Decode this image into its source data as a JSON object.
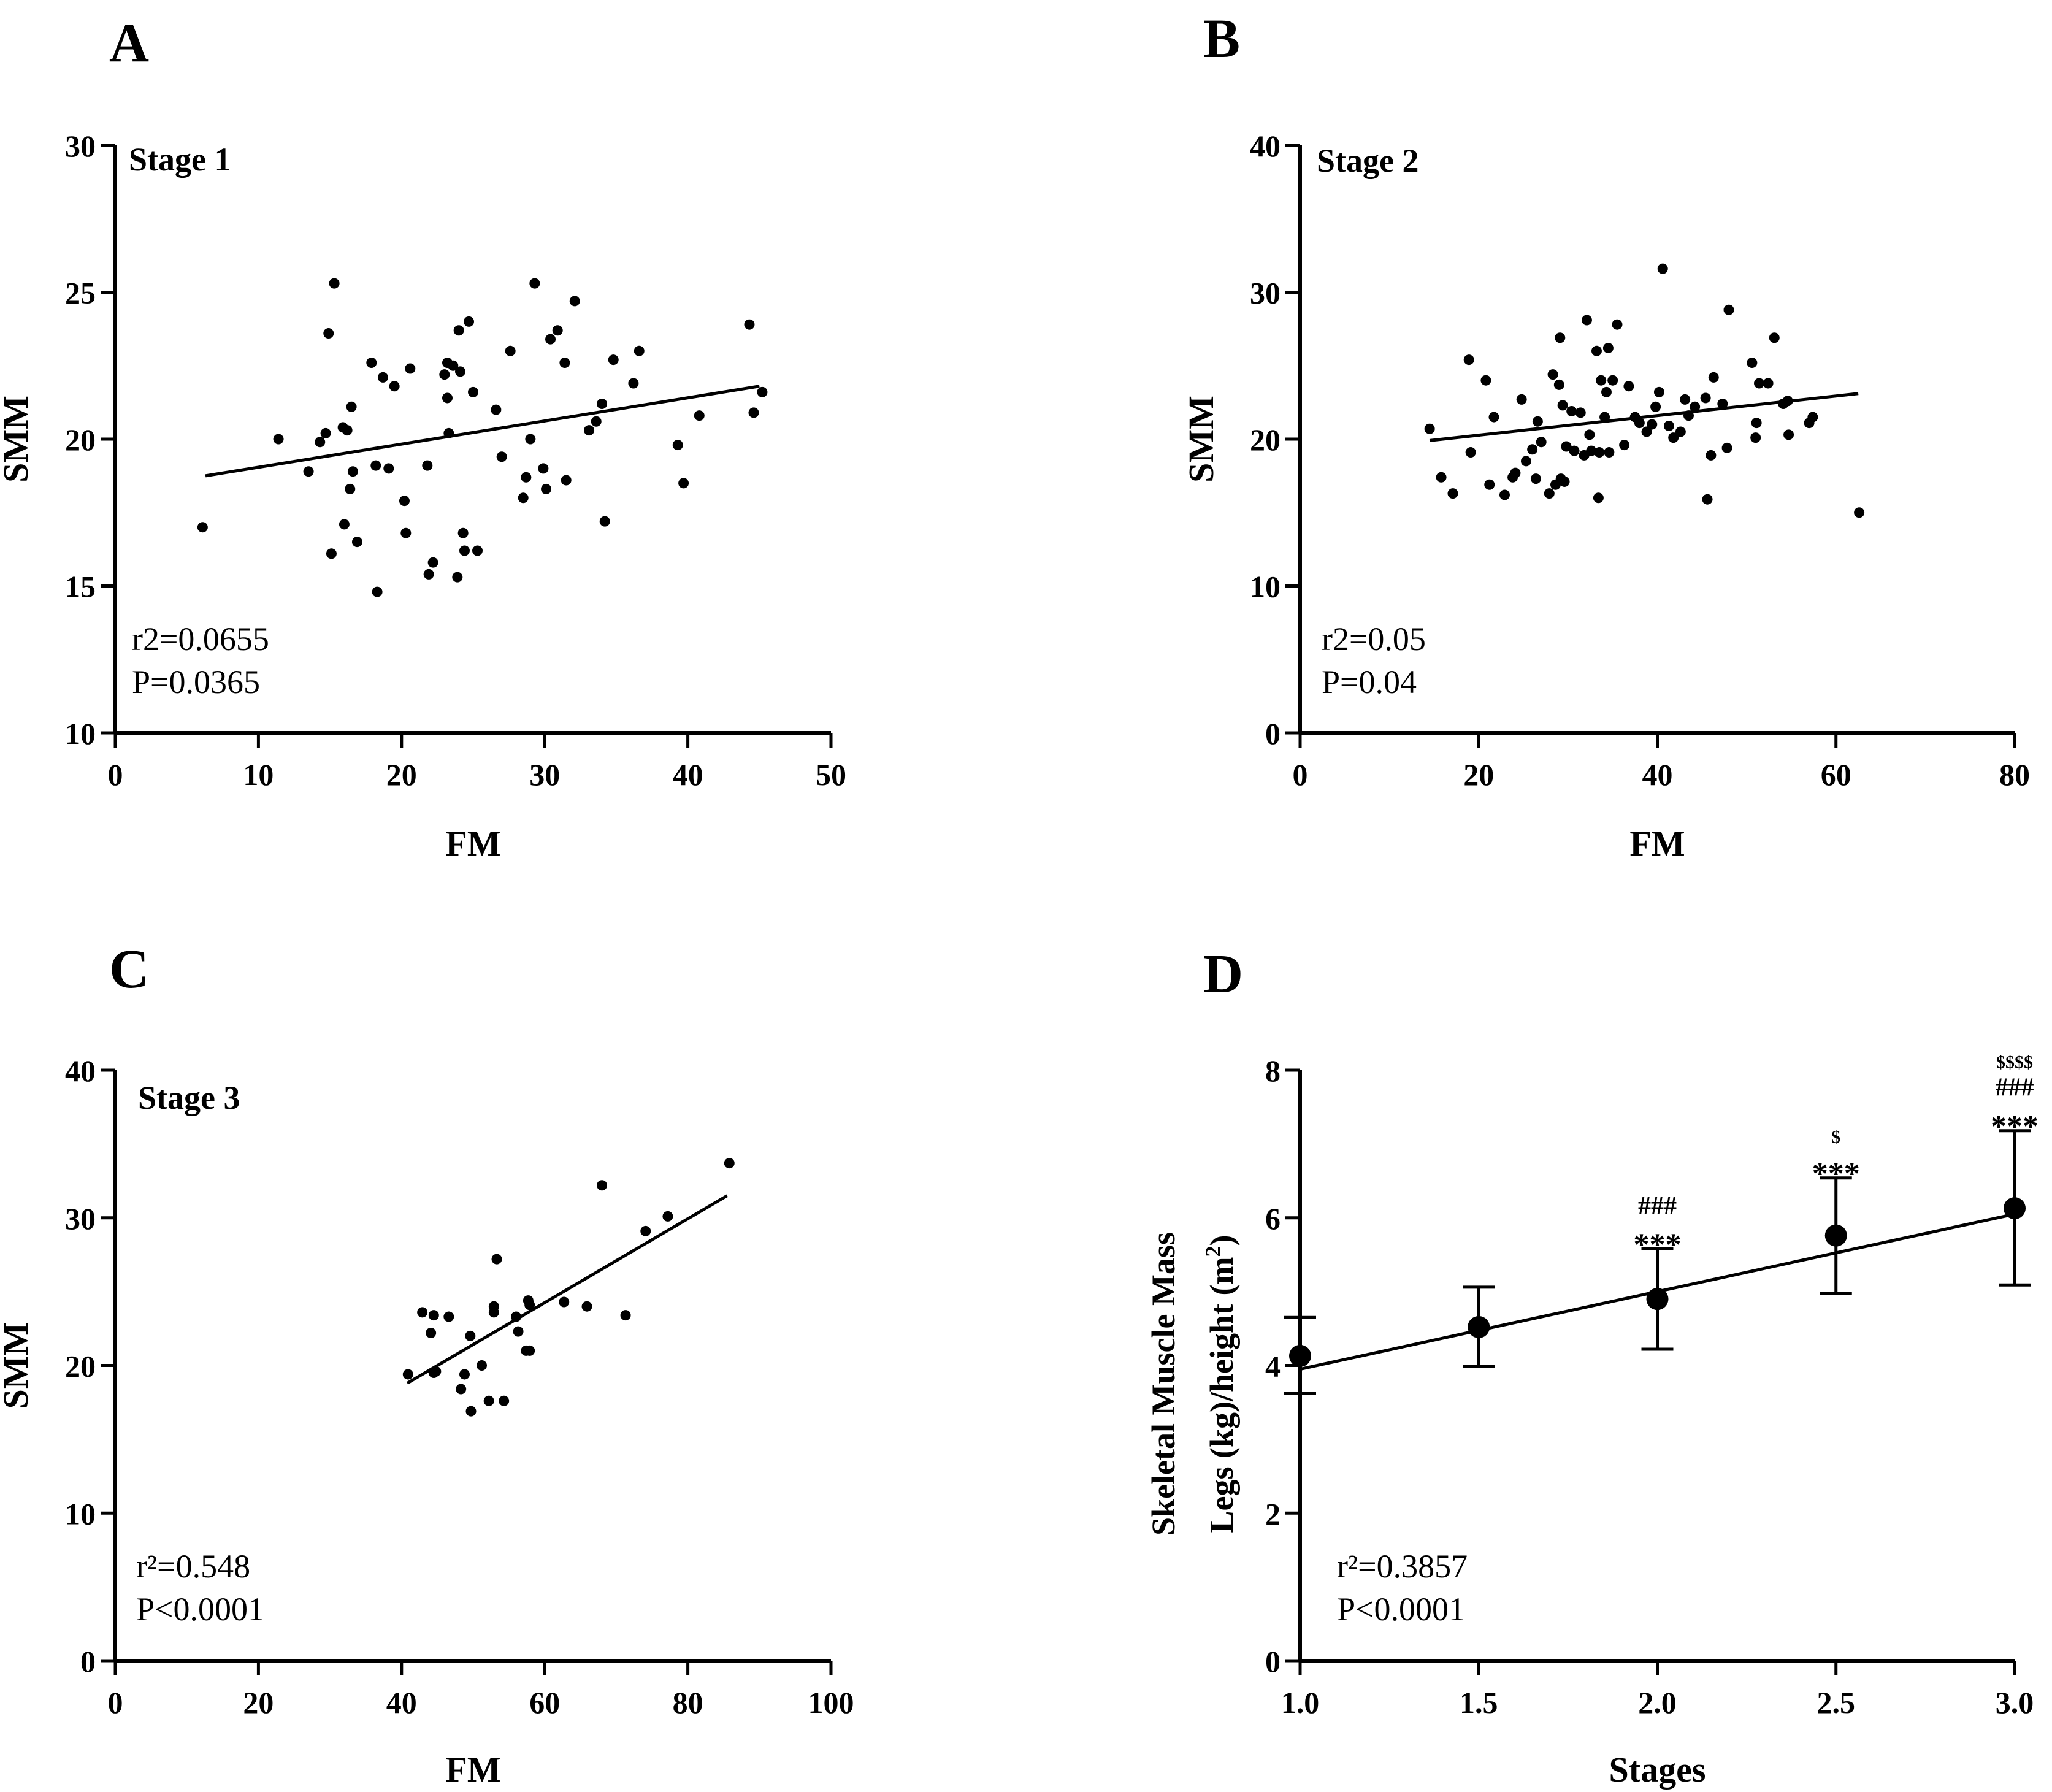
{
  "chart_data": [
    {
      "panel_letter": "A",
      "type": "scatter",
      "title": "Stage 1",
      "xlabel": "FM",
      "ylabel": "SMM",
      "xlim": [
        0,
        50
      ],
      "ylim": [
        10,
        30
      ],
      "xticks": [
        0,
        10,
        20,
        30,
        40,
        50
      ],
      "yticks": [
        10,
        15,
        20,
        25,
        30
      ],
      "stats": [
        "r2=0.0655",
        "P=0.0365"
      ],
      "regression": {
        "x": [
          6.3,
          45.0
        ],
        "y": [
          18.75,
          21.8
        ]
      },
      "points": [
        [
          6.1,
          17.0
        ],
        [
          11.4,
          20.0
        ],
        [
          13.5,
          18.9
        ],
        [
          14.3,
          19.9
        ],
        [
          14.7,
          20.2
        ],
        [
          14.9,
          23.6
        ],
        [
          15.1,
          16.1
        ],
        [
          15.3,
          25.3
        ],
        [
          15.9,
          20.4
        ],
        [
          16.0,
          17.1
        ],
        [
          16.2,
          20.3
        ],
        [
          16.4,
          18.3
        ],
        [
          16.5,
          21.1
        ],
        [
          16.6,
          18.9
        ],
        [
          16.9,
          16.5
        ],
        [
          17.9,
          22.6
        ],
        [
          18.2,
          19.1
        ],
        [
          18.3,
          14.8
        ],
        [
          18.7,
          22.1
        ],
        [
          19.1,
          19.0
        ],
        [
          19.5,
          21.8
        ],
        [
          20.2,
          17.9
        ],
        [
          20.3,
          16.8
        ],
        [
          20.6,
          22.4
        ],
        [
          21.8,
          19.1
        ],
        [
          21.9,
          15.4
        ],
        [
          22.2,
          15.8
        ],
        [
          23.0,
          22.2
        ],
        [
          23.2,
          21.4
        ],
        [
          23.2,
          22.6
        ],
        [
          23.3,
          20.2
        ],
        [
          23.6,
          22.5
        ],
        [
          23.9,
          15.3
        ],
        [
          24.0,
          23.7
        ],
        [
          24.1,
          22.3
        ],
        [
          24.3,
          16.8
        ],
        [
          24.4,
          16.2
        ],
        [
          24.7,
          24.0
        ],
        [
          25.0,
          21.6
        ],
        [
          25.3,
          16.2
        ],
        [
          26.6,
          21.0
        ],
        [
          27.0,
          19.4
        ],
        [
          27.6,
          23.0
        ],
        [
          28.5,
          18.0
        ],
        [
          28.7,
          18.7
        ],
        [
          29.0,
          20.0
        ],
        [
          29.3,
          25.3
        ],
        [
          29.9,
          19.0
        ],
        [
          30.1,
          18.3
        ],
        [
          30.4,
          23.4
        ],
        [
          30.9,
          23.7
        ],
        [
          31.4,
          22.6
        ],
        [
          31.5,
          18.6
        ],
        [
          32.1,
          24.7
        ],
        [
          33.1,
          20.3
        ],
        [
          33.6,
          20.6
        ],
        [
          34.0,
          21.2
        ],
        [
          34.2,
          17.2
        ],
        [
          34.8,
          22.7
        ],
        [
          36.2,
          21.9
        ],
        [
          36.6,
          23.0
        ],
        [
          39.3,
          19.8
        ],
        [
          39.7,
          18.5
        ],
        [
          40.8,
          20.8
        ],
        [
          44.3,
          23.9
        ],
        [
          44.6,
          20.9
        ],
        [
          45.2,
          21.6
        ]
      ]
    },
    {
      "panel_letter": "B",
      "type": "scatter",
      "title": "Stage 2",
      "xlabel": "FM",
      "ylabel": "SMM",
      "xlim": [
        0,
        80
      ],
      "ylim": [
        0,
        40
      ],
      "xticks": [
        0,
        20,
        40,
        60,
        80
      ],
      "yticks": [
        0,
        10,
        20,
        30,
        40
      ],
      "stats": [
        "r2=0.05",
        "P=0.04"
      ],
      "regression": {
        "x": [
          14.5,
          62.5
        ],
        "y": [
          19.9,
          23.1
        ]
      },
      "points": [
        [
          14.5,
          20.7
        ],
        [
          15.8,
          17.4
        ],
        [
          17.1,
          16.3
        ],
        [
          18.9,
          25.4
        ],
        [
          19.1,
          19.1
        ],
        [
          20.8,
          24.0
        ],
        [
          21.2,
          16.9
        ],
        [
          21.7,
          21.5
        ],
        [
          22.9,
          16.2
        ],
        [
          23.8,
          17.4
        ],
        [
          24.1,
          17.7
        ],
        [
          24.8,
          22.7
        ],
        [
          25.3,
          18.5
        ],
        [
          26.0,
          19.3
        ],
        [
          26.4,
          17.3
        ],
        [
          26.6,
          21.2
        ],
        [
          27.0,
          19.8
        ],
        [
          27.9,
          16.3
        ],
        [
          28.3,
          24.4
        ],
        [
          28.6,
          16.9
        ],
        [
          29.0,
          23.7
        ],
        [
          29.1,
          26.9
        ],
        [
          29.2,
          17.3
        ],
        [
          29.4,
          22.3
        ],
        [
          29.6,
          17.1
        ],
        [
          29.8,
          19.5
        ],
        [
          30.4,
          21.9
        ],
        [
          30.7,
          19.2
        ],
        [
          31.4,
          21.8
        ],
        [
          31.8,
          18.9
        ],
        [
          32.1,
          28.1
        ],
        [
          32.4,
          20.3
        ],
        [
          32.6,
          19.2
        ],
        [
          33.2,
          26.0
        ],
        [
          33.4,
          16.0
        ],
        [
          33.5,
          19.1
        ],
        [
          33.7,
          24.0
        ],
        [
          34.1,
          21.5
        ],
        [
          34.3,
          23.2
        ],
        [
          34.5,
          26.2
        ],
        [
          34.6,
          19.1
        ],
        [
          35.0,
          24.0
        ],
        [
          35.5,
          27.8
        ],
        [
          36.3,
          19.6
        ],
        [
          36.8,
          23.6
        ],
        [
          37.5,
          21.5
        ],
        [
          38.0,
          21.1
        ],
        [
          38.8,
          20.5
        ],
        [
          39.4,
          21.0
        ],
        [
          39.8,
          22.2
        ],
        [
          40.2,
          23.2
        ],
        [
          40.6,
          31.6
        ],
        [
          41.3,
          20.9
        ],
        [
          41.8,
          20.1
        ],
        [
          42.6,
          20.5
        ],
        [
          43.1,
          22.7
        ],
        [
          43.5,
          21.6
        ],
        [
          44.2,
          22.2
        ],
        [
          45.4,
          22.8
        ],
        [
          45.6,
          15.9
        ],
        [
          46.0,
          18.9
        ],
        [
          46.3,
          24.2
        ],
        [
          47.3,
          22.4
        ],
        [
          47.8,
          19.4
        ],
        [
          48.0,
          28.8
        ],
        [
          50.6,
          25.2
        ],
        [
          51.0,
          20.1
        ],
        [
          51.1,
          21.1
        ],
        [
          51.4,
          23.8
        ],
        [
          52.4,
          23.8
        ],
        [
          53.1,
          26.9
        ],
        [
          54.1,
          22.4
        ],
        [
          54.6,
          22.6
        ],
        [
          54.7,
          20.3
        ],
        [
          57.0,
          21.1
        ],
        [
          57.4,
          21.5
        ],
        [
          62.6,
          15.0
        ]
      ]
    },
    {
      "panel_letter": "C",
      "type": "scatter",
      "title": "Stage 3",
      "xlabel": "FM",
      "ylabel": "SMM",
      "xlim": [
        0,
        100
      ],
      "ylim": [
        0,
        40
      ],
      "xticks": [
        0,
        20,
        40,
        60,
        80,
        100
      ],
      "yticks": [
        0,
        10,
        20,
        30,
        40
      ],
      "stats": [
        "r²=0.548",
        "P<0.0001"
      ],
      "regression": {
        "x": [
          40.8,
          85.5
        ],
        "y": [
          18.8,
          31.5
        ]
      },
      "points": [
        [
          40.9,
          19.4
        ],
        [
          42.9,
          23.6
        ],
        [
          44.1,
          22.2
        ],
        [
          44.5,
          23.4
        ],
        [
          44.5,
          19.5
        ],
        [
          44.8,
          19.6
        ],
        [
          46.6,
          23.3
        ],
        [
          48.3,
          18.4
        ],
        [
          48.8,
          19.4
        ],
        [
          49.6,
          22.0
        ],
        [
          49.7,
          16.9
        ],
        [
          51.2,
          20.0
        ],
        [
          52.2,
          17.6
        ],
        [
          52.9,
          24.0
        ],
        [
          52.9,
          23.6
        ],
        [
          53.3,
          27.2
        ],
        [
          54.3,
          17.6
        ],
        [
          56.0,
          23.3
        ],
        [
          56.3,
          22.3
        ],
        [
          57.4,
          21.0
        ],
        [
          57.7,
          24.4
        ],
        [
          57.9,
          24.1
        ],
        [
          57.9,
          21.0
        ],
        [
          62.7,
          24.3
        ],
        [
          65.9,
          24.0
        ],
        [
          68.0,
          32.2
        ],
        [
          71.3,
          23.4
        ],
        [
          74.1,
          29.1
        ],
        [
          77.2,
          30.1
        ],
        [
          85.8,
          33.7
        ]
      ]
    },
    {
      "panel_letter": "D",
      "type": "line",
      "title": "",
      "xlabel": "Stages",
      "ylabel_line1": "Skeletal Muscle Mass",
      "ylabel_line2_prefix": "Legs (kg)/height (m",
      "ylabel_sup": "2",
      "ylabel_line2_suffix": ")",
      "xlim": [
        1.0,
        3.0
      ],
      "ylim": [
        0,
        8
      ],
      "xticks": [
        "1.0",
        "1.5",
        "2.0",
        "2.5",
        "3.0"
      ],
      "yticks": [
        0,
        2,
        4,
        6,
        8
      ],
      "stats": [
        "r²=0.3857",
        "P<0.0001"
      ],
      "regression": {
        "x": [
          1.0,
          3.0
        ],
        "y": [
          3.95,
          6.05
        ]
      },
      "x": [
        1.0,
        1.5,
        2.0,
        2.5,
        3.0
      ],
      "y": [
        4.13,
        4.52,
        4.9,
        5.76,
        6.13
      ],
      "error_upper": [
        4.65,
        5.06,
        5.58,
        6.54,
        7.18
      ],
      "error_lower": [
        3.62,
        3.99,
        4.22,
        4.98,
        5.09
      ],
      "annotations": [
        {
          "x": 2.0,
          "lines": [
            "###",
            "***"
          ]
        },
        {
          "x": 2.5,
          "lines": [
            "$",
            "***"
          ]
        },
        {
          "x": 3.0,
          "lines": [
            "$$$$",
            "###",
            "***"
          ]
        }
      ]
    }
  ]
}
